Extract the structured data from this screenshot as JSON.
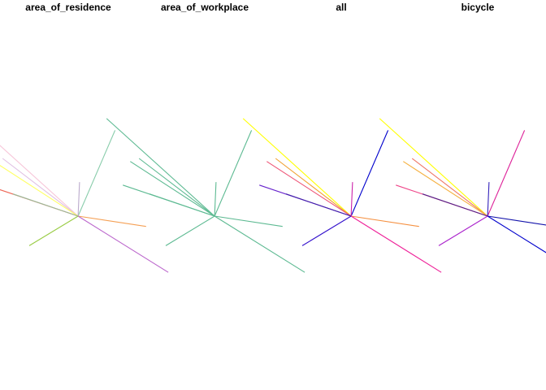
{
  "chart_data": {
    "type": "line",
    "description_free": true,
    "panels": [
      {
        "title": "area_of_residence",
        "lines": [
          {
            "x": [
              -0.4,
              0.33
            ],
            "y": [
              0.66,
              0.0
            ],
            "color": "#f7c6d9"
          },
          {
            "x": [
              -0.18,
              0.33
            ],
            "y": [
              0.39,
              0.0
            ],
            "color": "#e0bfe3"
          },
          {
            "x": [
              -0.24,
              0.33
            ],
            "y": [
              0.37,
              0.0
            ],
            "color": "#ffff66"
          },
          {
            "x": [
              -0.29,
              0.33
            ],
            "y": [
              0.21,
              0.0
            ],
            "color": "#ee6655"
          },
          {
            "x": [
              -0.11,
              0.33
            ],
            "y": [
              0.15,
              0.0
            ],
            "color": "#99bb99"
          },
          {
            "x": [
              0.33,
              0.58
            ],
            "y": [
              0.0,
              0.58
            ],
            "color": "#88ccaa"
          },
          {
            "x": [
              0.33,
              0.34
            ],
            "y": [
              0.0,
              0.23
            ],
            "color": "#bbaacc"
          },
          {
            "x": [
              0.33,
              0.79
            ],
            "y": [
              0.0,
              -0.07
            ],
            "color": "#f5a055"
          },
          {
            "x": [
              0.33,
              0.94
            ],
            "y": [
              0.0,
              -0.38
            ],
            "color": "#bb66cc"
          },
          {
            "x": [
              0.33,
              0.0
            ],
            "y": [
              0.0,
              -0.2
            ],
            "color": "#99cc44"
          }
        ]
      },
      {
        "title": "area_of_workplace",
        "lines": [
          {
            "x": [
              -0.4,
              0.33
            ],
            "y": [
              0.66,
              0.0
            ],
            "color": "#5dba92"
          },
          {
            "x": [
              -0.18,
              0.33
            ],
            "y": [
              0.39,
              0.0
            ],
            "color": "#5dba92"
          },
          {
            "x": [
              -0.24,
              0.33
            ],
            "y": [
              0.37,
              0.0
            ],
            "color": "#5dba92"
          },
          {
            "x": [
              -0.29,
              0.33
            ],
            "y": [
              0.21,
              0.0
            ],
            "color": "#5dba92"
          },
          {
            "x": [
              -0.11,
              0.33
            ],
            "y": [
              0.15,
              0.0
            ],
            "color": "#5dba92"
          },
          {
            "x": [
              0.33,
              0.58
            ],
            "y": [
              0.0,
              0.58
            ],
            "color": "#5dba92"
          },
          {
            "x": [
              0.33,
              0.34
            ],
            "y": [
              0.0,
              0.23
            ],
            "color": "#5dba92"
          },
          {
            "x": [
              0.33,
              0.79
            ],
            "y": [
              0.0,
              -0.07
            ],
            "color": "#5dba92"
          },
          {
            "x": [
              0.33,
              0.94
            ],
            "y": [
              0.0,
              -0.38
            ],
            "color": "#5dba92"
          },
          {
            "x": [
              0.33,
              0.0
            ],
            "y": [
              0.0,
              -0.2
            ],
            "color": "#5dba92"
          }
        ]
      },
      {
        "title": "all",
        "lines": [
          {
            "x": [
              -0.4,
              0.33
            ],
            "y": [
              0.66,
              0.0
            ],
            "color": "#ffff00"
          },
          {
            "x": [
              -0.18,
              0.33
            ],
            "y": [
              0.39,
              0.0
            ],
            "color": "#f0a030"
          },
          {
            "x": [
              -0.24,
              0.33
            ],
            "y": [
              0.37,
              0.0
            ],
            "color": "#ee5577"
          },
          {
            "x": [
              -0.29,
              0.33
            ],
            "y": [
              0.21,
              0.0
            ],
            "color": "#6622cc"
          },
          {
            "x": [
              -0.11,
              0.33
            ],
            "y": [
              0.15,
              0.0
            ],
            "color": "#4422aa"
          },
          {
            "x": [
              0.33,
              0.58
            ],
            "y": [
              0.0,
              0.58
            ],
            "color": "#0000cc"
          },
          {
            "x": [
              0.33,
              0.34
            ],
            "y": [
              0.0,
              0.23
            ],
            "color": "#cc22aa"
          },
          {
            "x": [
              0.33,
              0.79
            ],
            "y": [
              0.0,
              -0.07
            ],
            "color": "#f59040"
          },
          {
            "x": [
              0.33,
              0.94
            ],
            "y": [
              0.0,
              -0.38
            ],
            "color": "#ee2299"
          },
          {
            "x": [
              0.33,
              0.0
            ],
            "y": [
              0.0,
              -0.2
            ],
            "color": "#3311cc"
          }
        ]
      },
      {
        "title": "bicycle",
        "lines": [
          {
            "x": [
              -0.4,
              0.33
            ],
            "y": [
              0.66,
              0.0
            ],
            "color": "#ffff00"
          },
          {
            "x": [
              -0.18,
              0.33
            ],
            "y": [
              0.39,
              0.0
            ],
            "color": "#ee7766"
          },
          {
            "x": [
              -0.24,
              0.33
            ],
            "y": [
              0.37,
              0.0
            ],
            "color": "#f5b040"
          },
          {
            "x": [
              -0.29,
              0.33
            ],
            "y": [
              0.21,
              0.0
            ],
            "color": "#ee4488"
          },
          {
            "x": [
              -0.11,
              0.33
            ],
            "y": [
              0.15,
              0.0
            ],
            "color": "#552288"
          },
          {
            "x": [
              0.33,
              0.58
            ],
            "y": [
              0.0,
              0.58
            ],
            "color": "#dd2299"
          },
          {
            "x": [
              0.33,
              0.34
            ],
            "y": [
              0.0,
              0.23
            ],
            "color": "#3322bb"
          },
          {
            "x": [
              0.33,
              0.79
            ],
            "y": [
              0.0,
              -0.07
            ],
            "color": "#1111aa"
          },
          {
            "x": [
              0.33,
              0.94
            ],
            "y": [
              0.0,
              -0.38
            ],
            "color": "#0000cc"
          },
          {
            "x": [
              0.33,
              0.0
            ],
            "y": [
              0.0,
              -0.2
            ],
            "color": "#aa22cc"
          }
        ]
      }
    ],
    "xlim": [
      -0.42,
      1.0
    ],
    "ylim": [
      -1.0,
      1.0
    ],
    "grid": false
  }
}
